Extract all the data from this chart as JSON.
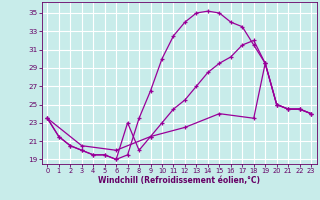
{
  "xlabel": "Windchill (Refroidissement éolien,°C)",
  "bg_color": "#c8ecea",
  "grid_color": "#ffffff",
  "line_color": "#990099",
  "yticks": [
    19,
    21,
    23,
    25,
    27,
    29,
    31,
    33,
    35
  ],
  "xticks": [
    0,
    1,
    2,
    3,
    4,
    5,
    6,
    7,
    8,
    9,
    10,
    11,
    12,
    13,
    14,
    15,
    16,
    17,
    18,
    19,
    20,
    21,
    22,
    23
  ],
  "line1_x": [
    0,
    1,
    2,
    3,
    4,
    5,
    6,
    7,
    8,
    9,
    10,
    11,
    12,
    13,
    14,
    15,
    16,
    17,
    18,
    19,
    20,
    21,
    22,
    23
  ],
  "line1_y": [
    23.5,
    21.5,
    20.5,
    20.0,
    19.5,
    19.5,
    19.0,
    19.5,
    23.5,
    26.5,
    30.0,
    32.5,
    34.0,
    35.0,
    35.2,
    35.0,
    34.0,
    33.5,
    31.5,
    29.5,
    25.0,
    24.5,
    24.5,
    24.0
  ],
  "line2_x": [
    0,
    1,
    2,
    3,
    4,
    5,
    6,
    7,
    8,
    9,
    10,
    11,
    12,
    13,
    14,
    15,
    16,
    17,
    18,
    19,
    20,
    21,
    22,
    23
  ],
  "line2_y": [
    23.5,
    21.5,
    20.5,
    20.0,
    19.5,
    19.5,
    19.0,
    23.0,
    20.0,
    21.5,
    23.0,
    24.5,
    25.5,
    27.0,
    28.5,
    29.5,
    30.2,
    31.5,
    32.0,
    29.5,
    25.0,
    24.5,
    24.5,
    24.0
  ],
  "line3_x": [
    0,
    3,
    6,
    9,
    12,
    15,
    18,
    19,
    20,
    21,
    22,
    23
  ],
  "line3_y": [
    23.5,
    20.5,
    20.0,
    21.5,
    22.5,
    24.0,
    23.5,
    29.5,
    25.0,
    24.5,
    24.5,
    24.0
  ],
  "xlim_min": -0.5,
  "xlim_max": 23.5,
  "ylim_min": 18.5,
  "ylim_max": 36.2
}
